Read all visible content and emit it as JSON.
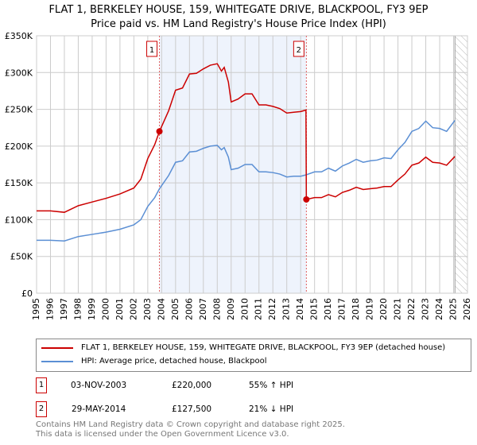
{
  "title": "FLAT 1, BERKELEY HOUSE, 159, WHITEGATE DRIVE, BLACKPOOL, FY3 9EP",
  "subtitle": "Price paid vs. HM Land Registry's House Price Index (HPI)",
  "chart_data": {
    "type": "line",
    "title": "FLAT 1, BERKELEY HOUSE, 159, WHITEGATE DRIVE, BLACKPOOL, FY3 9EP",
    "subtitle": "Price paid vs. HM Land Registry's House Price Index (HPI)",
    "xlim": [
      1995,
      2026
    ],
    "ylim": [
      0,
      350000
    ],
    "x_ticks": [
      "1995",
      "1996",
      "1997",
      "1998",
      "1999",
      "2000",
      "2001",
      "2002",
      "2003",
      "2004",
      "2005",
      "2006",
      "2007",
      "2008",
      "2009",
      "2010",
      "2011",
      "2012",
      "2013",
      "2014",
      "2015",
      "2016",
      "2017",
      "2018",
      "2019",
      "2020",
      "2021",
      "2022",
      "2023",
      "2024",
      "2025",
      "2026"
    ],
    "y_ticks": [
      {
        "v": 0,
        "l": "£0"
      },
      {
        "v": 50000,
        "l": "£50K"
      },
      {
        "v": 100000,
        "l": "£100K"
      },
      {
        "v": 150000,
        "l": "£150K"
      },
      {
        "v": 200000,
        "l": "£200K"
      },
      {
        "v": 250000,
        "l": "£250K"
      },
      {
        "v": 300000,
        "l": "£300K"
      },
      {
        "v": 350000,
        "l": "£350K"
      }
    ],
    "grid": true,
    "series": [
      {
        "name": "FLAT 1, BERKELEY HOUSE, 159, WHITEGATE DRIVE, BLACKPOOL, FY3 9EP (detached house)",
        "color": "#cc0000",
        "x": [
          1995,
          1996,
          1997,
          1998,
          1999,
          2000,
          2001,
          2002,
          2002.5,
          2003,
          2003.5,
          2003.84,
          2004.5,
          2005,
          2005.5,
          2006,
          2006.5,
          2007,
          2007.5,
          2008,
          2008.3,
          2008.5,
          2008.8,
          2009,
          2009.5,
          2010,
          2010.5,
          2011,
          2011.5,
          2012,
          2012.5,
          2013,
          2013.5,
          2014,
          2014.38,
          2014.41,
          2015,
          2015.5,
          2016,
          2016.5,
          2017,
          2017.5,
          2018,
          2018.5,
          2019,
          2019.5,
          2020,
          2020.5,
          2021,
          2021.5,
          2022,
          2022.5,
          2023,
          2023.5,
          2024,
          2024.5,
          2025.1
        ],
        "y": [
          112000,
          112000,
          110000,
          119000,
          124000,
          129000,
          135000,
          143000,
          155000,
          183000,
          202000,
          220000,
          248000,
          276000,
          279000,
          298000,
          299000,
          305000,
          310000,
          312000,
          302000,
          307000,
          287000,
          260000,
          264000,
          271000,
          271000,
          256000,
          256000,
          254000,
          251000,
          245000,
          246000,
          247000,
          249000,
          127500,
          130000,
          130000,
          134000,
          131000,
          137000,
          140000,
          144000,
          141000,
          142000,
          143000,
          145000,
          145000,
          154000,
          162000,
          174000,
          177000,
          185000,
          178000,
          177000,
          174000,
          186000
        ]
      },
      {
        "name": "HPI: Average price, detached house, Blackpool",
        "color": "#5b8fd4",
        "x": [
          1995,
          1996,
          1997,
          1998,
          1999,
          2000,
          2001,
          2002,
          2002.5,
          2003,
          2003.5,
          2003.84,
          2004.5,
          2005,
          2005.5,
          2006,
          2006.5,
          2007,
          2007.5,
          2008,
          2008.3,
          2008.5,
          2008.8,
          2009,
          2009.5,
          2010,
          2010.5,
          2011,
          2011.5,
          2012,
          2012.5,
          2013,
          2013.5,
          2014,
          2014.41,
          2015,
          2015.5,
          2016,
          2016.5,
          2017,
          2017.5,
          2018,
          2018.5,
          2019,
          2019.5,
          2020,
          2020.5,
          2021,
          2021.5,
          2022,
          2022.5,
          2023,
          2023.5,
          2024,
          2024.5,
          2025.1
        ],
        "y": [
          72000,
          72000,
          71000,
          77000,
          80000,
          83000,
          87000,
          93000,
          100000,
          118000,
          130000,
          142000,
          160000,
          178000,
          180000,
          192000,
          193000,
          197000,
          200000,
          201000,
          195000,
          198000,
          185000,
          168000,
          170000,
          175000,
          175000,
          165000,
          165000,
          164000,
          162000,
          158000,
          159000,
          159000,
          161000,
          165000,
          165000,
          170000,
          166000,
          173000,
          177000,
          182000,
          178000,
          180000,
          181000,
          184000,
          183000,
          195000,
          205000,
          220000,
          224000,
          234000,
          225000,
          224000,
          220000,
          235000
        ]
      }
    ],
    "sales": [
      {
        "id": "1",
        "x": 2003.84,
        "y": 220000
      },
      {
        "id": "2",
        "x": 2014.41,
        "y": 127500
      }
    ],
    "shaded_range": [
      2003.84,
      2014.41
    ],
    "forecast_from": 2025.1
  },
  "legend": [
    "FLAT 1, BERKELEY HOUSE, 159, WHITEGATE DRIVE, BLACKPOOL, FY3 9EP (detached house)",
    "HPI: Average price, detached house, Blackpool"
  ],
  "transactions": [
    {
      "id": "1",
      "date": "03-NOV-2003",
      "price": "£220,000",
      "hpi": "55% ↑ HPI"
    },
    {
      "id": "2",
      "date": "29-MAY-2014",
      "price": "£127,500",
      "hpi": "21% ↓ HPI"
    }
  ],
  "footer": [
    "Contains HM Land Registry data © Crown copyright and database right 2025.",
    "This data is licensed under the Open Government Licence v3.0."
  ]
}
